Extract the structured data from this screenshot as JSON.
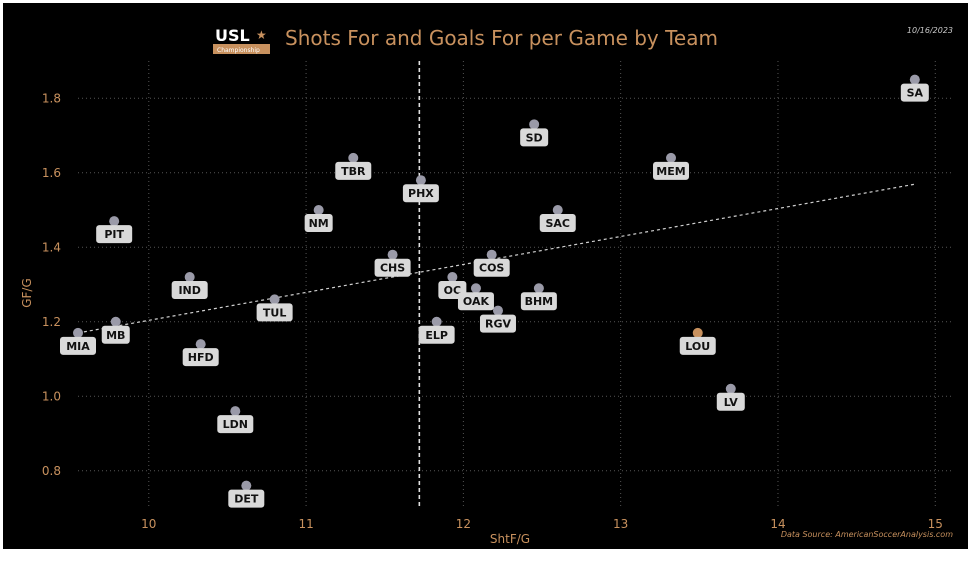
{
  "header": {
    "logo_text": "USL",
    "logo_sub": "Championship",
    "title": "Shots For and Goals For per Game by Team",
    "date": "10/16/2023"
  },
  "footer": {
    "source": "Data Source: AmericanSoccerAnalysis.com"
  },
  "colors": {
    "background": "#000000",
    "accent": "#c8915e",
    "point": "#9a9aa8",
    "highlight_point": "#c8915e",
    "label_bg": "#d9d9d9",
    "grid": "#555555",
    "trend": "#cfcfcf"
  },
  "chart_data": {
    "type": "scatter",
    "title": "Shots For and Goals For per Game by Team",
    "xlabel": "ShtF/G",
    "ylabel": "GF/G",
    "xlim": [
      9.55,
      15.1
    ],
    "ylim": [
      0.7,
      1.9
    ],
    "xticks": [
      10,
      11,
      12,
      13,
      14,
      15
    ],
    "yticks": [
      0.8,
      1.0,
      1.2,
      1.4,
      1.6,
      1.8
    ],
    "grid": true,
    "reference_line_x": 11.72,
    "trendline": {
      "x": [
        9.55,
        14.88
      ],
      "y": [
        1.17,
        1.57
      ]
    },
    "points": [
      {
        "team": "SA",
        "x": 14.87,
        "y": 1.85
      },
      {
        "team": "SD",
        "x": 12.45,
        "y": 1.73
      },
      {
        "team": "TBR",
        "x": 11.3,
        "y": 1.64
      },
      {
        "team": "MEM",
        "x": 13.32,
        "y": 1.64
      },
      {
        "team": "PHX",
        "x": 11.73,
        "y": 1.58
      },
      {
        "team": "PIT",
        "x": 9.78,
        "y": 1.47
      },
      {
        "team": "NM",
        "x": 11.08,
        "y": 1.5
      },
      {
        "team": "SAC",
        "x": 12.6,
        "y": 1.5
      },
      {
        "team": "CHS",
        "x": 11.55,
        "y": 1.38
      },
      {
        "team": "OC",
        "x": 11.93,
        "y": 1.32
      },
      {
        "team": "COS",
        "x": 12.18,
        "y": 1.38
      },
      {
        "team": "IND",
        "x": 10.26,
        "y": 1.32
      },
      {
        "team": "TUL",
        "x": 10.8,
        "y": 1.26
      },
      {
        "team": "OAK",
        "x": 12.08,
        "y": 1.29
      },
      {
        "team": "BHM",
        "x": 12.48,
        "y": 1.29
      },
      {
        "team": "RGV",
        "x": 12.22,
        "y": 1.23
      },
      {
        "team": "ELP",
        "x": 11.83,
        "y": 1.2
      },
      {
        "team": "MB",
        "x": 9.79,
        "y": 1.2
      },
      {
        "team": "MIA",
        "x": 9.55,
        "y": 1.17
      },
      {
        "team": "HFD",
        "x": 10.33,
        "y": 1.14
      },
      {
        "team": "LOU",
        "x": 13.49,
        "y": 1.17,
        "highlight": true
      },
      {
        "team": "LV",
        "x": 13.7,
        "y": 1.02
      },
      {
        "team": "LDN",
        "x": 10.55,
        "y": 0.96
      },
      {
        "team": "DET",
        "x": 10.62,
        "y": 0.76
      }
    ]
  }
}
